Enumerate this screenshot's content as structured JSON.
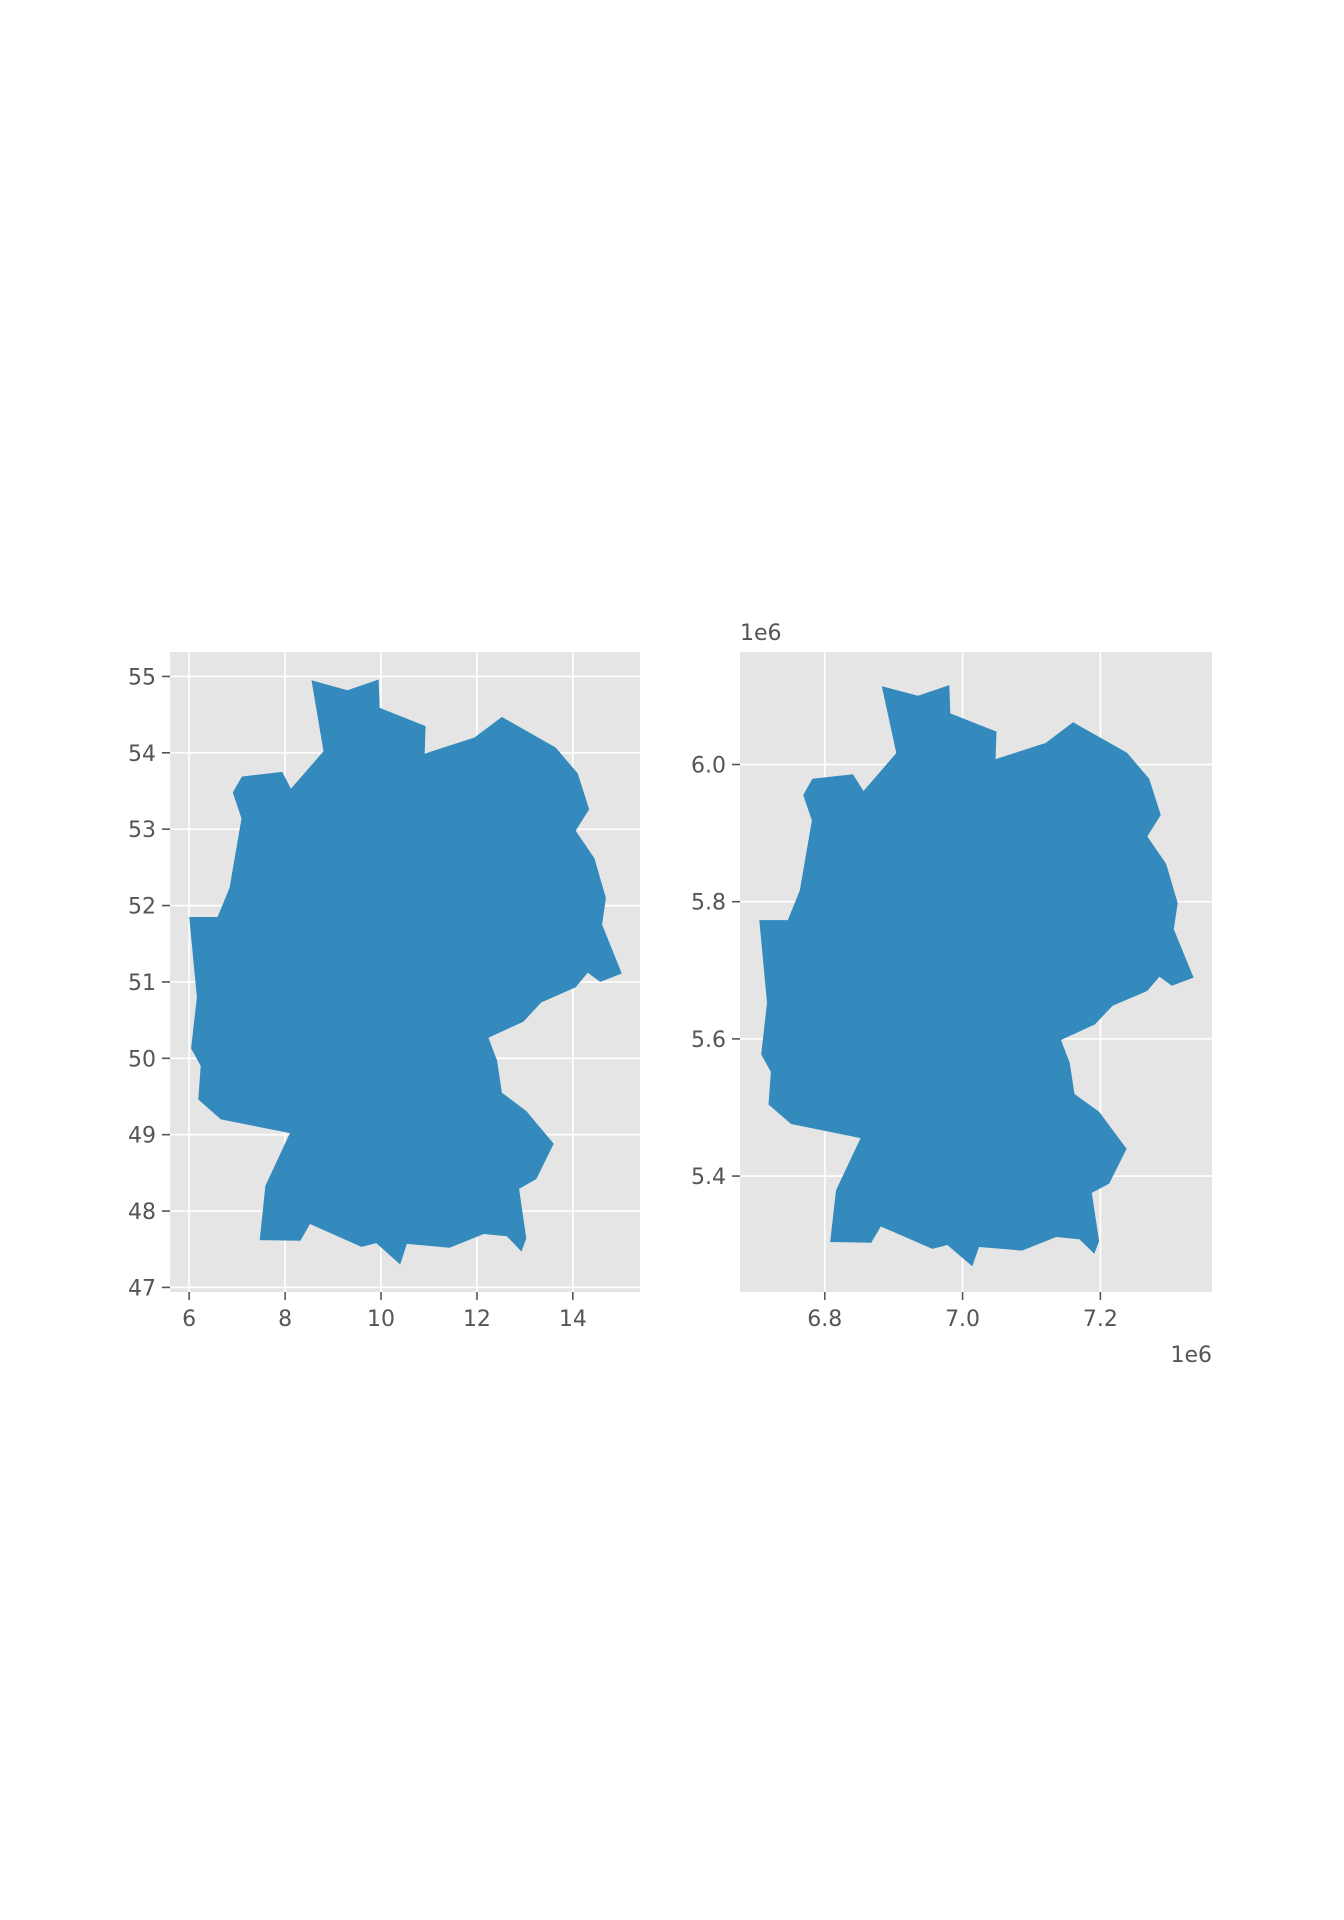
{
  "style": {
    "axes_background": "#e5e5e5",
    "grid_color": "#ffffff",
    "fill_color": "#348abd",
    "tick_color": "#555555"
  },
  "chart_data": [
    {
      "type": "map",
      "grid": true,
      "xlim": [
        5.6,
        15.4
      ],
      "ylim": [
        46.94,
        55.32
      ],
      "x_ticks": [
        6,
        8,
        10,
        12,
        14
      ],
      "x_tick_labels": [
        "6",
        "8",
        "10",
        "12",
        "14"
      ],
      "y_ticks": [
        47,
        48,
        49,
        50,
        51,
        52,
        53,
        54,
        55
      ],
      "y_tick_labels": [
        "47",
        "48",
        "49",
        "50",
        "51",
        "52",
        "53",
        "54",
        "55"
      ],
      "x_offset_label": "",
      "y_offset_label": "",
      "polygon": [
        [
          8.55,
          54.95
        ],
        [
          9.3,
          54.82
        ],
        [
          9.95,
          54.96
        ],
        [
          9.97,
          54.59
        ],
        [
          10.93,
          54.35
        ],
        [
          10.91,
          53.99
        ],
        [
          11.95,
          54.2
        ],
        [
          12.52,
          54.47
        ],
        [
          13.64,
          54.07
        ],
        [
          14.1,
          53.73
        ],
        [
          14.34,
          53.26
        ],
        [
          14.06,
          52.98
        ],
        [
          14.45,
          52.62
        ],
        [
          14.69,
          52.1
        ],
        [
          14.61,
          51.75
        ],
        [
          15.02,
          51.11
        ],
        [
          14.57,
          51.0
        ],
        [
          14.31,
          51.12
        ],
        [
          14.06,
          50.93
        ],
        [
          13.34,
          50.73
        ],
        [
          12.97,
          50.48
        ],
        [
          12.24,
          50.27
        ],
        [
          12.42,
          49.97
        ],
        [
          12.52,
          49.55
        ],
        [
          13.03,
          49.31
        ],
        [
          13.6,
          48.88
        ],
        [
          13.24,
          48.42
        ],
        [
          12.88,
          48.29
        ],
        [
          13.03,
          47.64
        ],
        [
          12.93,
          47.47
        ],
        [
          12.62,
          47.67
        ],
        [
          12.14,
          47.7
        ],
        [
          11.43,
          47.52
        ],
        [
          10.54,
          47.57
        ],
        [
          10.4,
          47.3
        ],
        [
          9.9,
          47.58
        ],
        [
          9.59,
          47.53
        ],
        [
          8.52,
          47.83
        ],
        [
          8.32,
          47.61
        ],
        [
          7.47,
          47.62
        ],
        [
          7.59,
          48.33
        ],
        [
          8.1,
          49.02
        ],
        [
          6.66,
          49.2
        ],
        [
          6.19,
          49.46
        ],
        [
          6.24,
          49.9
        ],
        [
          6.04,
          50.13
        ],
        [
          6.16,
          50.8
        ],
        [
          6.0,
          51.85
        ],
        [
          6.59,
          51.85
        ],
        [
          6.84,
          52.23
        ],
        [
          7.09,
          53.14
        ],
        [
          6.91,
          53.48
        ],
        [
          7.1,
          53.69
        ],
        [
          7.94,
          53.75
        ],
        [
          8.12,
          53.53
        ],
        [
          8.8,
          54.02
        ]
      ]
    },
    {
      "type": "map",
      "grid": true,
      "xlim": [
        6.677,
        7.362
      ],
      "ylim": [
        5.231,
        6.164
      ],
      "x_ticks": [
        6.8,
        7.0,
        7.2
      ],
      "x_tick_labels": [
        "6.8",
        "7.0",
        "7.2"
      ],
      "y_ticks": [
        5.4,
        5.6,
        5.8,
        6.0
      ],
      "y_tick_labels": [
        "5.4",
        "5.6",
        "5.8",
        "6.0"
      ],
      "x_offset_label": "1e6",
      "y_offset_label": "1e6",
      "polygon": [
        [
          6.8828,
          6.1142
        ],
        [
          6.9353,
          6.1003
        ],
        [
          6.9808,
          6.1158
        ],
        [
          6.9822,
          6.0745
        ],
        [
          7.0493,
          6.0479
        ],
        [
          7.0479,
          6.0079
        ],
        [
          7.1205,
          6.0313
        ],
        [
          7.1604,
          6.0617
        ],
        [
          7.2387,
          6.0171
        ],
        [
          7.2709,
          5.9791
        ],
        [
          7.2877,
          5.9264
        ],
        [
          7.2681,
          5.8952
        ],
        [
          7.2954,
          5.8552
        ],
        [
          7.3122,
          5.798
        ],
        [
          7.3066,
          5.7597
        ],
        [
          7.3353,
          5.6894
        ],
        [
          7.3038,
          5.6774
        ],
        [
          7.2856,
          5.6906
        ],
        [
          7.2681,
          5.6699
        ],
        [
          7.2177,
          5.6482
        ],
        [
          7.1919,
          5.621
        ],
        [
          7.1429,
          5.5984
        ],
        [
          7.1555,
          5.5652
        ],
        [
          7.1625,
          5.5197
        ],
        [
          7.1982,
          5.4938
        ],
        [
          7.238,
          5.4397
        ],
        [
          7.2128,
          5.389
        ],
        [
          7.1876,
          5.3755
        ],
        [
          7.1982,
          5.3052
        ],
        [
          7.1912,
          5.2867
        ],
        [
          7.1695,
          5.3079
        ],
        [
          7.1359,
          5.3112
        ],
        [
          7.0862,
          5.2914
        ],
        [
          7.0239,
          5.2966
        ],
        [
          7.0141,
          5.2684
        ],
        [
          6.9779,
          5.2995
        ],
        [
          6.9562,
          5.2939
        ],
        [
          6.8814,
          5.3265
        ],
        [
          6.8674,
          5.3029
        ],
        [
          6.8079,
          5.3039
        ],
        [
          6.8163,
          5.3794
        ],
        [
          6.852,
          5.4553
        ],
        [
          6.7512,
          5.4759
        ],
        [
          6.7183,
          5.5043
        ],
        [
          6.7218,
          5.5518
        ],
        [
          6.7078,
          5.5772
        ],
        [
          6.7162,
          5.6527
        ],
        [
          6.705,
          5.7731
        ],
        [
          6.7463,
          5.7731
        ],
        [
          6.7638,
          5.8164
        ],
        [
          6.7813,
          5.9183
        ],
        [
          6.7687,
          5.9556
        ],
        [
          6.782,
          5.9791
        ],
        [
          6.8408,
          5.9859
        ],
        [
          6.8562,
          5.9613
        ],
        [
          6.9038,
          6.0166
        ]
      ]
    }
  ]
}
